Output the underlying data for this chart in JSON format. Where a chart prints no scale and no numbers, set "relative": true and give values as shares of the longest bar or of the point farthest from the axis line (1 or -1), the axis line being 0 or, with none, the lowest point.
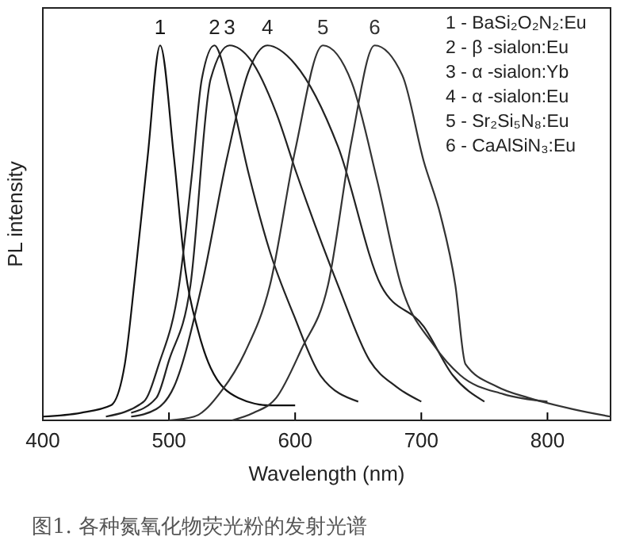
{
  "chart_data": {
    "type": "line",
    "relative": true,
    "xlabel": "Wavelength (nm)",
    "ylabel": "PL intensity",
    "xlim": [
      400,
      850
    ],
    "xticks": [
      400,
      500,
      600,
      700,
      800
    ],
    "grid": false,
    "marker": "none",
    "line_style": "solid",
    "tick_labels": "x",
    "series": [
      {
        "name": "1",
        "color": "#111111",
        "x": [
          400,
          430,
          454,
          465,
          473,
          483,
          493,
          504,
          513,
          523,
          533,
          555,
          580,
          600
        ],
        "values": [
          0.01,
          0.02,
          0.04,
          0.15,
          0.38,
          0.7,
          1,
          0.7,
          0.4,
          0.24,
          0.14,
          0.06,
          0.04,
          0.04
        ]
      },
      {
        "name": "2",
        "color": "#222222",
        "x": [
          450,
          480,
          492,
          508,
          518,
          526,
          536,
          548,
          563,
          580,
          599,
          620,
          650
        ],
        "values": [
          0.01,
          0.05,
          0.15,
          0.36,
          0.65,
          0.91,
          1,
          0.88,
          0.66,
          0.45,
          0.28,
          0.12,
          0.05
        ]
      },
      {
        "name": "3",
        "color": "#222222",
        "x": [
          470,
          490,
          500,
          517,
          533,
          548,
          565,
          585,
          601,
          634,
          659,
          680,
          700
        ],
        "values": [
          0.02,
          0.06,
          0.16,
          0.36,
          0.91,
          1,
          0.96,
          0.82,
          0.66,
          0.36,
          0.16,
          0.09,
          0.05
        ]
      },
      {
        "name": "4",
        "color": "#222222",
        "x": [
          470,
          490,
          504,
          526,
          546,
          563,
          578,
          600,
          634,
          668,
          702,
          725,
          750
        ],
        "values": [
          0.01,
          0.03,
          0.09,
          0.36,
          0.7,
          0.93,
          1,
          0.95,
          0.73,
          0.36,
          0.25,
          0.12,
          0.05
        ]
      },
      {
        "name": "5",
        "color": "#333333",
        "x": [
          500,
          520,
          542,
          560,
          580,
          600,
          622,
          645,
          665,
          684,
          710,
          731,
          765,
          800
        ],
        "values": [
          0,
          0.01,
          0.08,
          0.18,
          0.36,
          0.72,
          1,
          0.9,
          0.64,
          0.36,
          0.2,
          0.12,
          0.07,
          0.05
        ]
      },
      {
        "name": "6",
        "color": "#333333",
        "x": [
          550,
          567,
          585,
          605,
          626,
          645,
          663,
          685,
          702,
          715,
          727,
          735,
          760,
          785,
          820,
          850
        ],
        "values": [
          0,
          0.02,
          0.06,
          0.19,
          0.36,
          0.75,
          1,
          0.92,
          0.69,
          0.55,
          0.36,
          0.15,
          0.09,
          0.06,
          0.03,
          0.01
        ]
      }
    ],
    "annotations": [
      "1 - BaSi₂O₂N₂:Eu",
      "2 - β -sialon:Eu",
      "3 - α -sialon:Yb",
      "4 - α -sialon:Eu",
      "5 - Sr₂Si₅N₈:Eu",
      "6 - CaAlSiN₃:Eu",
      "图1. 各种氮氧化物荧光粉的发射光谱"
    ]
  }
}
